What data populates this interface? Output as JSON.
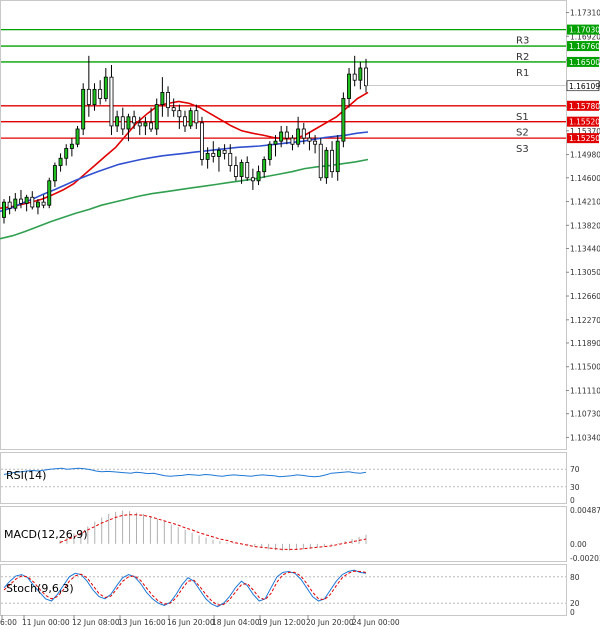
{
  "chart_data": [
    {
      "type": "candlestick",
      "panel": "price",
      "ylim": [
        1.102,
        1.1745
      ],
      "y_ticks": [
        "1.17310",
        "1.16920",
        "1.16530",
        "1.16140",
        "1.15760",
        "1.15370",
        "1.14980",
        "1.14600",
        "1.14210",
        "1.13820",
        "1.13440",
        "1.13050",
        "1.12660",
        "1.12270",
        "1.11890",
        "1.11500",
        "1.11110",
        "1.10730",
        "1.10340"
      ],
      "x_ticks": [
        "6:00",
        "11 Jun 00:00",
        "12 Jun 08:00",
        "13 Jun 16:00",
        "16 Jun 20:00",
        "18 Jun 04:00",
        "19 Jun 12:00",
        "20 Jun 20:00",
        "24 Jun 00:00"
      ],
      "levels": [
        {
          "name": "R3",
          "value": 1.1703,
          "price_label": "1.17030",
          "color": "#00a000"
        },
        {
          "name": "R2",
          "value": 1.1676,
          "price_label": "1.16760",
          "color": "#00a000"
        },
        {
          "name": "R1",
          "value": 1.165,
          "price_label": "1.16500",
          "color": "#00a000"
        },
        {
          "name": "S1",
          "value": 1.1578,
          "price_label": "1.15780",
          "color": "#e00000"
        },
        {
          "name": "S2",
          "value": 1.1552,
          "price_label": "1.15520",
          "color": "#e00000"
        },
        {
          "name": "S3",
          "value": 1.1525,
          "price_label": "1.15250",
          "color": "#e00000"
        }
      ],
      "current_price": {
        "value": 1.16109,
        "label": "1.16109"
      },
      "candles": [
        [
          1.1395,
          1.1425,
          1.1385,
          1.142
        ],
        [
          1.142,
          1.143,
          1.14,
          1.141
        ],
        [
          1.141,
          1.1435,
          1.1405,
          1.1425
        ],
        [
          1.1425,
          1.144,
          1.141,
          1.1418
        ],
        [
          1.1418,
          1.1432,
          1.1405,
          1.1428
        ],
        [
          1.1428,
          1.1438,
          1.1408,
          1.1412
        ],
        [
          1.1412,
          1.1425,
          1.14,
          1.142
        ],
        [
          1.142,
          1.1432,
          1.141,
          1.1415
        ],
        [
          1.1415,
          1.146,
          1.141,
          1.1455
        ],
        [
          1.1455,
          1.1485,
          1.1445,
          1.148
        ],
        [
          1.148,
          1.15,
          1.147,
          1.1492
        ],
        [
          1.1492,
          1.1515,
          1.148,
          1.1508
        ],
        [
          1.1508,
          1.1525,
          1.1495,
          1.1515
        ],
        [
          1.1515,
          1.1545,
          1.151,
          1.154
        ],
        [
          1.154,
          1.1615,
          1.153,
          1.1605
        ],
        [
          1.1605,
          1.166,
          1.156,
          1.158
        ],
        [
          1.158,
          1.1615,
          1.157,
          1.1605
        ],
        [
          1.1605,
          1.162,
          1.158,
          1.159
        ],
        [
          1.159,
          1.164,
          1.1585,
          1.1625
        ],
        [
          1.1625,
          1.1645,
          1.153,
          1.1545
        ],
        [
          1.1545,
          1.157,
          1.1535,
          1.156
        ],
        [
          1.156,
          1.1575,
          1.153,
          1.154
        ],
        [
          1.154,
          1.1565,
          1.152,
          1.156
        ],
        [
          1.156,
          1.157,
          1.154,
          1.155
        ],
        [
          1.155,
          1.156,
          1.153,
          1.1545
        ],
        [
          1.1545,
          1.156,
          1.153,
          1.155
        ],
        [
          1.155,
          1.1575,
          1.1535,
          1.154
        ],
        [
          1.154,
          1.159,
          1.153,
          1.158
        ],
        [
          1.158,
          1.1625,
          1.156,
          1.16
        ],
        [
          1.16,
          1.161,
          1.156,
          1.1575
        ],
        [
          1.1575,
          1.159,
          1.156,
          1.157
        ],
        [
          1.157,
          1.158,
          1.154,
          1.156
        ],
        [
          1.156,
          1.157,
          1.1535,
          1.1545
        ],
        [
          1.1545,
          1.1575,
          1.154,
          1.157
        ],
        [
          1.157,
          1.158,
          1.154,
          1.155
        ],
        [
          1.155,
          1.156,
          1.148,
          1.149
        ],
        [
          1.149,
          1.151,
          1.1475,
          1.15
        ],
        [
          1.15,
          1.152,
          1.1485,
          1.1495
        ],
        [
          1.1495,
          1.151,
          1.147,
          1.1505
        ],
        [
          1.1505,
          1.1515,
          1.149,
          1.15
        ],
        [
          1.15,
          1.1515,
          1.147,
          1.148
        ],
        [
          1.148,
          1.1495,
          1.1455,
          1.1462
        ],
        [
          1.1462,
          1.149,
          1.145,
          1.1485
        ],
        [
          1.1485,
          1.1495,
          1.1455,
          1.146
        ],
        [
          1.146,
          1.1475,
          1.144,
          1.1455
        ],
        [
          1.1455,
          1.148,
          1.1448,
          1.147
        ],
        [
          1.147,
          1.1495,
          1.146,
          1.149
        ],
        [
          1.149,
          1.152,
          1.148,
          1.1515
        ],
        [
          1.1515,
          1.153,
          1.1495,
          1.152
        ],
        [
          1.152,
          1.1545,
          1.151,
          1.1535
        ],
        [
          1.1535,
          1.1545,
          1.1515,
          1.1525
        ],
        [
          1.1525,
          1.153,
          1.1505,
          1.1515
        ],
        [
          1.1515,
          1.156,
          1.151,
          1.154
        ],
        [
          1.154,
          1.155,
          1.1515,
          1.1525
        ],
        [
          1.1525,
          1.1535,
          1.1505,
          1.152
        ],
        [
          1.152,
          1.153,
          1.15,
          1.1515
        ],
        [
          1.1515,
          1.1525,
          1.1455,
          1.146
        ],
        [
          1.146,
          1.151,
          1.145,
          1.1505
        ],
        [
          1.1505,
          1.152,
          1.146,
          1.147
        ],
        [
          1.147,
          1.153,
          1.1455,
          1.152
        ],
        [
          1.152,
          1.16,
          1.151,
          1.159
        ],
        [
          1.159,
          1.164,
          1.1575,
          1.163
        ],
        [
          1.163,
          1.166,
          1.161,
          1.162
        ],
        [
          1.162,
          1.165,
          1.1605,
          1.164
        ],
        [
          1.164,
          1.1655,
          1.16,
          1.1611
        ]
      ],
      "moving_averages": [
        {
          "color": "#e00000",
          "values": [
            1.141,
            1.1412,
            1.1416,
            1.142,
            1.1425,
            1.1432,
            1.144,
            1.145,
            1.1465,
            1.148,
            1.1495,
            1.151,
            1.153,
            1.155,
            1.1565,
            1.1578,
            1.1582,
            1.1585,
            1.1582,
            1.1575,
            1.1565,
            1.1555,
            1.1545,
            1.1537,
            1.1533,
            1.153,
            1.1526,
            1.1524,
            1.1524,
            1.153,
            1.154,
            1.155,
            1.156,
            1.1575,
            1.159,
            1.16
          ]
        },
        {
          "color": "#3050d0",
          "values": [
            1.1405,
            1.141,
            1.1418,
            1.1425,
            1.1433,
            1.144,
            1.1448,
            1.1456,
            1.1463,
            1.147,
            1.1476,
            1.1482,
            1.1486,
            1.149,
            1.1493,
            1.1496,
            1.1498,
            1.15,
            1.1502,
            1.1504,
            1.1506,
            1.1508,
            1.151,
            1.1511,
            1.1512,
            1.1514,
            1.1516,
            1.1518,
            1.152,
            1.1523,
            1.1526,
            1.1528,
            1.153,
            1.1533,
            1.1535
          ]
        },
        {
          "color": "#30a050",
          "values": [
            1.136,
            1.1365,
            1.1372,
            1.138,
            1.1388,
            1.1395,
            1.1402,
            1.1408,
            1.1415,
            1.142,
            1.1425,
            1.143,
            1.1434,
            1.1437,
            1.144,
            1.1443,
            1.1446,
            1.1449,
            1.1452,
            1.1455,
            1.1458,
            1.1462,
            1.1466,
            1.147,
            1.1475,
            1.1478,
            1.148,
            1.1483,
            1.1486,
            1.149
          ]
        }
      ]
    },
    {
      "type": "line",
      "panel": "rsi",
      "title": "RSI(14)",
      "ylim": [
        0,
        100
      ],
      "y_ticks": [
        "70",
        "30",
        "0"
      ],
      "levels": [
        70,
        30
      ],
      "series": [
        {
          "color": "#1e78d6",
          "values": [
            58,
            61,
            63,
            64,
            66,
            67,
            66,
            68,
            70,
            71,
            72,
            70,
            71,
            72,
            71,
            69,
            66,
            64,
            65,
            64,
            63,
            62,
            61,
            63,
            62,
            60,
            61,
            58,
            55,
            54,
            55,
            56,
            58,
            57,
            56,
            58,
            57,
            55,
            54,
            56,
            57,
            56,
            55,
            54,
            56,
            57,
            56,
            55,
            53,
            54,
            55,
            57,
            56,
            54,
            53,
            54,
            57,
            61,
            62,
            63,
            64,
            62,
            61,
            63
          ]
        }
      ]
    },
    {
      "type": "bar+line",
      "panel": "macd",
      "title": "MACD(12,26,9)",
      "ylim": [
        -0.002037,
        0.00487
      ],
      "y_ticks": [
        "0.00487",
        "0.00",
        "-0.002037"
      ],
      "histogram": [
        0.0005,
        0.001,
        0.0015,
        0.002,
        0.0025,
        0.0032,
        0.0038,
        0.0043,
        0.0046,
        0.0048,
        0.0047,
        0.0045,
        0.0043,
        0.004,
        0.0036,
        0.0032,
        0.0028,
        0.0024,
        0.002,
        0.0016,
        0.0012,
        0.0009,
        0.0006,
        0.0004,
        0.0002,
        0.0001,
        0.0,
        -0.0002,
        -0.0004,
        -0.0006,
        -0.0008,
        -0.0009,
        -0.001,
        -0.001,
        -0.0009,
        -0.0008,
        -0.0007,
        -0.0005,
        -0.0004,
        -0.0002,
        0.0001,
        0.0004,
        0.0007,
        0.001,
        0.0013
      ],
      "signal": [
        0.0002,
        0.0006,
        0.001,
        0.0015,
        0.002,
        0.0025,
        0.003,
        0.0034,
        0.0038,
        0.0041,
        0.0042,
        0.0042,
        0.0041,
        0.0039,
        0.0036,
        0.0033,
        0.003,
        0.0027,
        0.0023,
        0.002,
        0.0016,
        0.0013,
        0.001,
        0.0007,
        0.0005,
        0.0002,
        0.0,
        -0.0002,
        -0.0004,
        -0.0005,
        -0.0006,
        -0.0007,
        -0.0008,
        -0.0008,
        -0.0008,
        -0.0007,
        -0.0006,
        -0.0005,
        -0.0004,
        -0.0003,
        -0.0001,
        0.0001,
        0.0003,
        0.0005,
        0.0007
      ]
    },
    {
      "type": "line",
      "panel": "stochastic",
      "title": "Stoch(9,6,3)",
      "ylim": [
        0,
        100
      ],
      "y_ticks": [
        "80",
        "20",
        "0"
      ],
      "levels": [
        80,
        20
      ],
      "series": [
        {
          "color": "#1e78d6",
          "values": [
            55,
            70,
            82,
            85,
            78,
            60,
            45,
            30,
            25,
            40,
            60,
            80,
            88,
            85,
            70,
            50,
            35,
            30,
            40,
            60,
            78,
            85,
            80,
            65,
            45,
            30,
            20,
            15,
            22,
            40,
            62,
            78,
            70,
            50,
            30,
            18,
            12,
            20,
            35,
            55,
            70,
            60,
            40,
            25,
            30,
            55,
            80,
            90,
            92,
            88,
            75,
            55,
            35,
            25,
            30,
            50,
            70,
            85,
            92,
            95,
            90,
            88
          ]
        },
        {
          "color": "#e00000",
          "values": [
            50,
            62,
            75,
            82,
            80,
            68,
            52,
            38,
            30,
            35,
            50,
            70,
            82,
            86,
            78,
            60,
            42,
            33,
            36,
            52,
            70,
            80,
            82,
            72,
            55,
            38,
            25,
            18,
            20,
            32,
            52,
            70,
            72,
            58,
            40,
            25,
            16,
            17,
            28,
            45,
            62,
            65,
            50,
            33,
            28,
            42,
            68,
            85,
            90,
            90,
            82,
            65,
            45,
            30,
            28,
            40,
            60,
            78,
            88,
            93,
            92,
            90
          ]
        }
      ]
    }
  ]
}
